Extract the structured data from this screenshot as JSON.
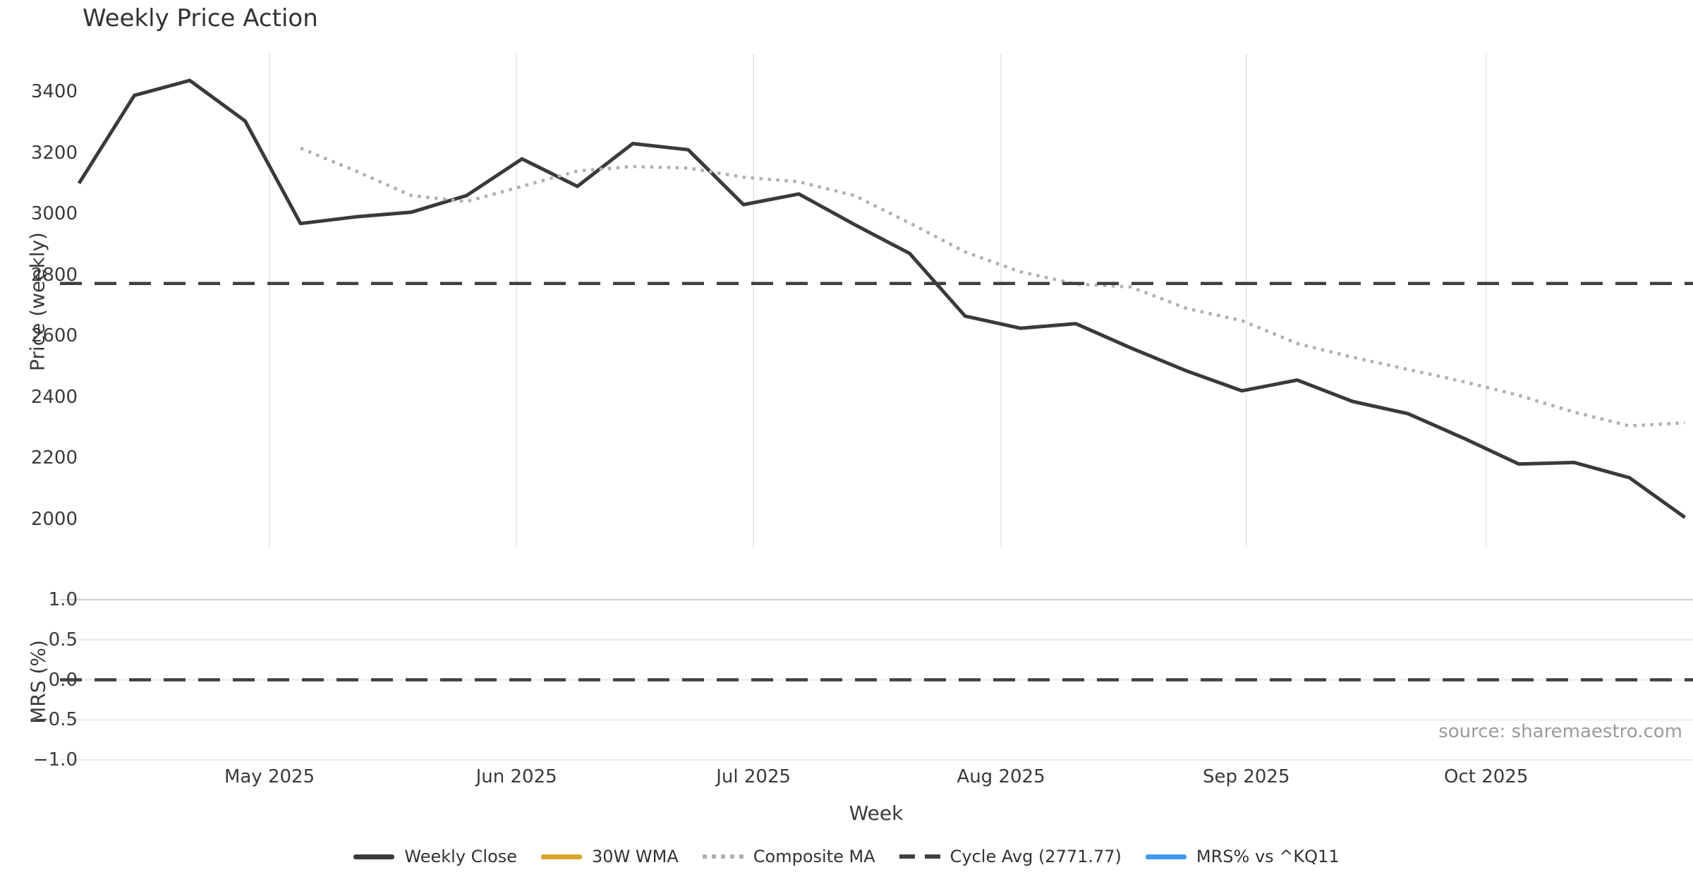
{
  "title": "Weekly Price Action",
  "source_note": "source: sharemaestro.com",
  "colors": {
    "weekly_close": "#3a3a3a",
    "wma_30w": "#d9a62e",
    "composite_ma": "#b0b0b0",
    "cycle_avg": "#3f3f3f",
    "mrs_line": "#3f97ef",
    "grid_light": "#e9e9e9",
    "grid_dark": "#cfcfcf",
    "text": "#3a3a3a",
    "muted_text": "#9b9b9b"
  },
  "price_panel": {
    "ylabel": "Price (weekly)",
    "yticks": [
      2000,
      2200,
      2400,
      2600,
      2800,
      3000,
      3200,
      3400
    ],
    "ylim": [
      1910,
      3525
    ]
  },
  "mrs_panel": {
    "ylabel": "MRS (%)",
    "ytick_labels": [
      "1.0",
      "0.5",
      "0.0",
      "−0.5",
      "−1.0"
    ],
    "ytick_values": [
      1.0,
      0.5,
      0.0,
      -0.5,
      -1.0
    ],
    "ylim": [
      -1.06,
      1.06
    ]
  },
  "xaxis": {
    "label": "Week",
    "months": [
      {
        "label": "May 2025",
        "week_index": 3.44
      },
      {
        "label": "Jun 2025",
        "week_index": 7.9
      },
      {
        "label": "Jul 2025",
        "week_index": 12.18
      },
      {
        "label": "Aug 2025",
        "week_index": 16.65
      },
      {
        "label": "Sep 2025",
        "week_index": 21.08
      },
      {
        "label": "Oct 2025",
        "week_index": 25.41
      }
    ]
  },
  "legend": [
    {
      "label": "Weekly Close",
      "color": "#3a3a3a",
      "style": "solid"
    },
    {
      "label": "30W WMA",
      "color": "#d9a62e",
      "style": "solid"
    },
    {
      "label": "Composite MA",
      "color": "#b0b0b0",
      "style": "dotted"
    },
    {
      "label": "Cycle Avg (2771.77)",
      "color": "#3f3f3f",
      "style": "dashed"
    },
    {
      "label": "MRS% vs ^KQ11",
      "color": "#3f97ef",
      "style": "solid"
    }
  ],
  "chart_data": [
    {
      "type": "line",
      "panel": "price",
      "title": "Weekly Price Action",
      "xlabel": "Week",
      "ylabel": "Price (weekly)",
      "x_unit": "week_index",
      "x": [
        0,
        1,
        2,
        3,
        4,
        5,
        6,
        7,
        8,
        9,
        10,
        11,
        12,
        13,
        14,
        15,
        16,
        17,
        18,
        19,
        20,
        21,
        22,
        23,
        24,
        25,
        26,
        27,
        28,
        29
      ],
      "series": [
        {
          "name": "Weekly Close",
          "style": "solid",
          "values": [
            3100,
            3388,
            3437,
            3304,
            2968,
            2990,
            3005,
            3060,
            3180,
            3090,
            3230,
            3210,
            3030,
            3065,
            2965,
            2870,
            2665,
            2625,
            2640,
            2560,
            2485,
            2420,
            2455,
            2385,
            2345,
            2265,
            2180,
            2185,
            2135,
            2005
          ]
        },
        {
          "name": "Composite MA",
          "style": "dotted",
          "values": [
            null,
            null,
            null,
            null,
            3215,
            3140,
            3060,
            3040,
            3090,
            3140,
            3155,
            3150,
            3120,
            3105,
            3060,
            2970,
            2875,
            2810,
            2770,
            2760,
            2690,
            2650,
            2575,
            2530,
            2490,
            2450,
            2405,
            2350,
            2305,
            2315
          ]
        },
        {
          "name": "30W WMA",
          "style": "solid",
          "values": []
        },
        {
          "name": "Cycle Avg",
          "style": "dashed-constant",
          "constant": 2771.77
        }
      ],
      "ylim": [
        1910,
        3525
      ],
      "grid": "vertical-months-only",
      "legend_position": "below-figure"
    },
    {
      "type": "line",
      "panel": "mrs",
      "ylabel": "MRS (%)",
      "x_unit": "week_index",
      "series": [
        {
          "name": "MRS% vs ^KQ11",
          "style": "solid",
          "values": []
        },
        {
          "name": "Zero reference",
          "style": "dashed-constant",
          "constant": 0.0
        }
      ],
      "ylim": [
        -1.06,
        1.06
      ],
      "grid": "horizontal-only"
    }
  ]
}
